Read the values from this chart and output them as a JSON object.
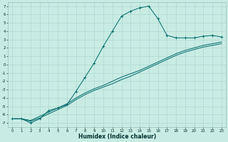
{
  "title": "",
  "xlabel": "Humidex (Indice chaleur)",
  "bg_color": "#c8ece4",
  "grid_color": "#a8d4cc",
  "line_color": "#006868",
  "xlim": [
    -0.5,
    23.5
  ],
  "ylim": [
    -7.5,
    7.5
  ],
  "xticks": [
    0,
    1,
    2,
    3,
    4,
    5,
    6,
    7,
    8,
    9,
    10,
    11,
    12,
    13,
    14,
    15,
    16,
    17,
    18,
    19,
    20,
    21,
    22,
    23
  ],
  "yticks": [
    -7,
    -6,
    -5,
    -4,
    -3,
    -2,
    -1,
    0,
    1,
    2,
    3,
    4,
    5,
    6,
    7
  ],
  "line1_x": [
    0,
    1,
    2,
    3,
    4,
    5,
    6,
    7,
    8,
    9,
    10,
    11,
    12,
    13,
    14,
    15,
    16,
    17,
    18,
    19,
    20,
    21,
    22,
    23
  ],
  "line1_y": [
    -6.5,
    -6.5,
    -7.0,
    -6.5,
    -5.5,
    -5.2,
    -4.8,
    -3.2,
    -1.5,
    0.2,
    2.2,
    4.0,
    5.8,
    6.4,
    6.8,
    7.0,
    5.5,
    3.5,
    3.2,
    3.2,
    3.2,
    3.4,
    3.5,
    3.3
  ],
  "line2_x": [
    0,
    1,
    2,
    3,
    4,
    5,
    6,
    7,
    8,
    9,
    10,
    11,
    12,
    13,
    14,
    15,
    16,
    17,
    18,
    19,
    20,
    21,
    22,
    23
  ],
  "line2_y": [
    -6.5,
    -6.5,
    -6.7,
    -6.2,
    -5.7,
    -5.2,
    -4.7,
    -4.0,
    -3.4,
    -2.9,
    -2.5,
    -2.0,
    -1.5,
    -1.1,
    -0.7,
    -0.2,
    0.3,
    0.8,
    1.3,
    1.7,
    2.0,
    2.3,
    2.5,
    2.7
  ],
  "line3_x": [
    0,
    1,
    2,
    3,
    4,
    5,
    6,
    7,
    8,
    9,
    10,
    11,
    12,
    13,
    14,
    15,
    16,
    17,
    18,
    19,
    20,
    21,
    22,
    23
  ],
  "line3_y": [
    -6.5,
    -6.5,
    -6.8,
    -6.4,
    -5.9,
    -5.4,
    -4.9,
    -4.2,
    -3.6,
    -3.1,
    -2.7,
    -2.3,
    -1.8,
    -1.4,
    -0.9,
    -0.4,
    0.1,
    0.6,
    1.1,
    1.5,
    1.8,
    2.1,
    2.3,
    2.5
  ]
}
